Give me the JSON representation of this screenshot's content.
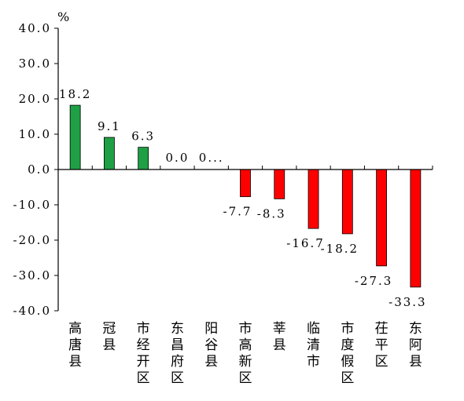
{
  "chart_data": {
    "type": "bar",
    "unit_label": "%",
    "categories": [
      "高唐县",
      "冠县",
      "市经开区",
      "东昌府区",
      "阳谷县",
      "市高新区",
      "莘县",
      "临清市",
      "市度假区",
      "茌平区",
      "东阿县"
    ],
    "values": [
      18.2,
      9.1,
      6.3,
      0.0,
      0.0,
      -7.7,
      -8.3,
      -16.7,
      -18.2,
      -27.3,
      -33.3
    ],
    "data_labels": [
      "18.2",
      "9.1",
      "6.3",
      "0.0",
      "0...",
      "-7.7",
      "-8.3",
      "-16.7",
      "-18.2",
      "-27.3",
      "-33.3"
    ],
    "ylim": [
      -40,
      40
    ],
    "yticks": [
      -40,
      -30,
      -20,
      -10,
      0,
      10,
      20,
      30,
      40
    ],
    "ytick_labels": [
      "-40.0",
      "-30.0",
      "-20.0",
      "-10.0",
      "0.0",
      "10.0",
      "20.0",
      "30.0",
      "40.0"
    ],
    "colors": {
      "positive": "#1fa045",
      "negative": "#ff0000",
      "axis": "#000000"
    },
    "grid": false,
    "legend": "none"
  }
}
